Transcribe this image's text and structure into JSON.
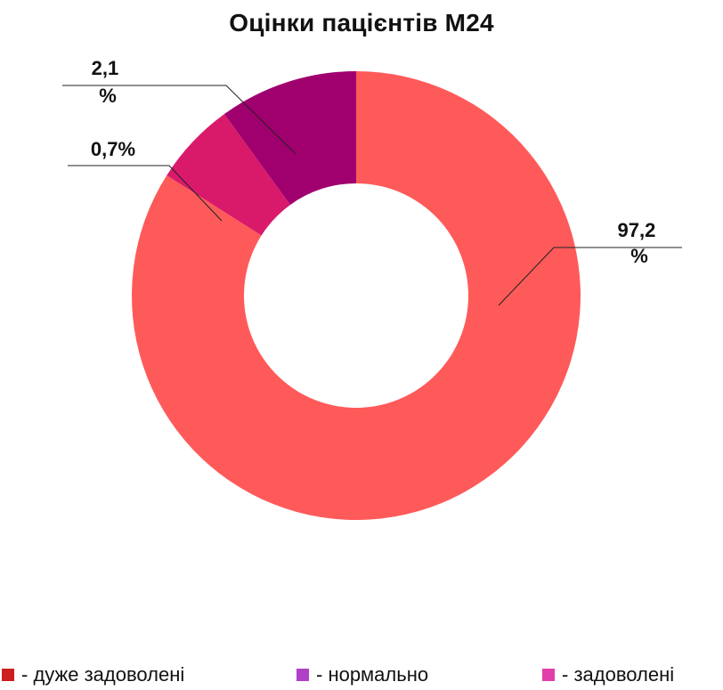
{
  "chart_data": {
    "type": "pie",
    "variant": "donut",
    "title": "Оцінки пацієнтів М24",
    "series": [
      {
        "name": "- дуже задоволені",
        "value": 97.2,
        "label": "97,2 %",
        "color": "#ff5a5a"
      },
      {
        "name": "- нормально",
        "value": 2.1,
        "label": "2,1 %",
        "color": "#a0006e"
      },
      {
        "name": "- задоволені",
        "value": 0.7,
        "label": "0,7%",
        "color": "#d91a6b"
      }
    ],
    "legend": {
      "placement": "bottom",
      "items": [
        {
          "label": "- дуже задоволені",
          "color": "#cc1f1f"
        },
        {
          "label": "- нормально",
          "color": "#b040c8"
        },
        {
          "label": "- задоволені",
          "color": "#e040a8"
        }
      ]
    }
  }
}
